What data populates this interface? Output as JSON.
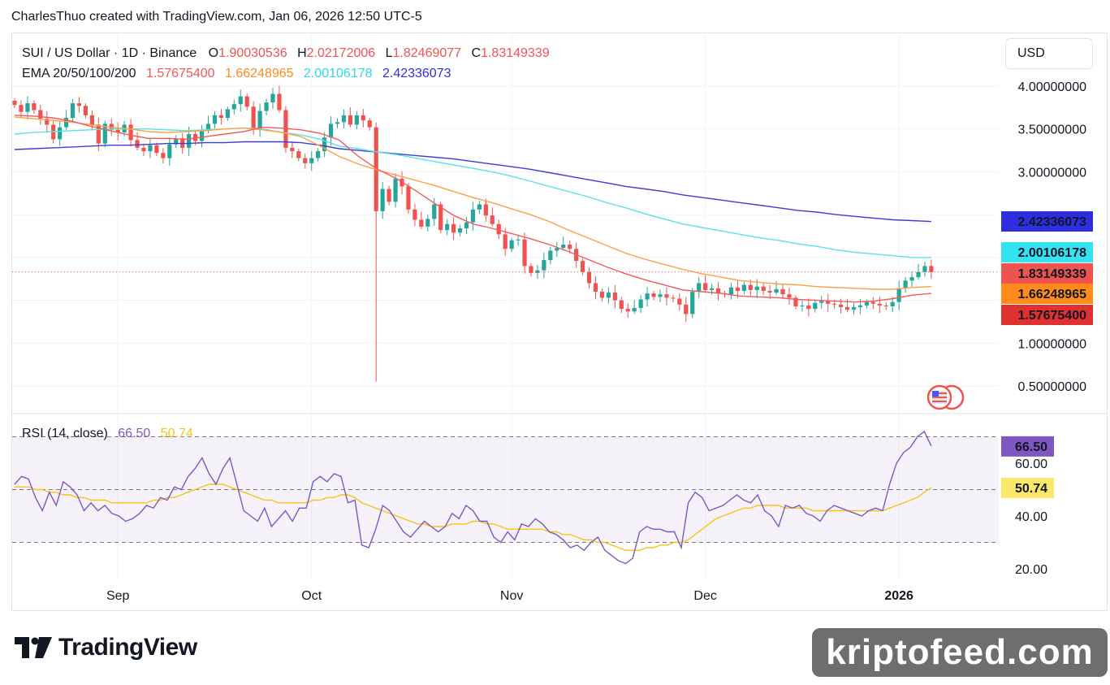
{
  "header": {
    "text": "CharlesThuo created with TradingView.com, Jan 06, 2026 12:50 UTC-5"
  },
  "currency_button": {
    "label": "USD"
  },
  "branding": {
    "tv_logo_text": "TradingView",
    "watermark": "kriptofeed.com"
  },
  "colors": {
    "up": "#26a69a",
    "down": "#ef5350",
    "ema20": "#f05a5a",
    "ema50": "#ff9f40",
    "ema100": "#5ce1e6",
    "ema200": "#3d3dd6",
    "rsi": "#7e57c2",
    "rsi_ma": "#f5c518"
  },
  "chart_data": [
    {
      "type": "candlestick",
      "legend": {
        "symbol": "SUI / US Dollar · 1D · Binance",
        "open_label": "O",
        "open": "1.90030536",
        "high_label": "H",
        "high": "2.02172006",
        "low_label": "L",
        "low": "1.82469077",
        "close_label": "C",
        "close": "1.83149339",
        "ema_label": "EMA 20/50/100/200",
        "ema_values": [
          "1.57675400",
          "1.66248965",
          "2.00106178",
          "2.42336073"
        ]
      },
      "price_ticks": [
        "4.00000000",
        "3.50000000",
        "3.00000000",
        "1.00000000",
        "0.50000000"
      ],
      "price_tick_values": [
        4.0,
        3.5,
        3.0,
        1.0,
        0.5
      ],
      "price_badges": [
        {
          "label": "2.42336073",
          "value": 2.42336073,
          "color": "#2e2ee0"
        },
        {
          "label": "2.00106178",
          "value": 2.00106178,
          "color": "#33e3f2"
        },
        {
          "label": "1.83149339",
          "value": 1.83149339,
          "color": "#ef5350"
        },
        {
          "label": "1.66248965",
          "value": 1.66248965,
          "color": "#ff8c1a"
        },
        {
          "label": "1.57675400",
          "value": 1.576754,
          "color": "#e03030"
        }
      ],
      "ylim": [
        0.3,
        4.6
      ],
      "time_labels": [
        "Sep",
        "Oct",
        "Nov",
        "Dec",
        "2026"
      ],
      "time_label_index": [
        16,
        46,
        77,
        107,
        137
      ],
      "candles_close": [
        3.78,
        3.7,
        3.8,
        3.72,
        3.62,
        3.55,
        3.38,
        3.52,
        3.63,
        3.8,
        3.77,
        3.66,
        3.55,
        3.33,
        3.56,
        3.49,
        3.46,
        3.55,
        3.37,
        3.28,
        3.24,
        3.31,
        3.22,
        3.16,
        3.32,
        3.39,
        3.28,
        3.44,
        3.36,
        3.48,
        3.56,
        3.66,
        3.63,
        3.73,
        3.79,
        3.88,
        3.76,
        3.5,
        3.71,
        3.81,
        3.91,
        3.72,
        3.28,
        3.24,
        3.16,
        3.1,
        3.16,
        3.24,
        3.4,
        3.56,
        3.58,
        3.66,
        3.55,
        3.66,
        3.6,
        3.52,
        2.54,
        2.8,
        2.65,
        2.92,
        2.83,
        2.56,
        2.44,
        2.36,
        2.45,
        2.62,
        2.32,
        2.39,
        2.29,
        2.34,
        2.41,
        2.56,
        2.62,
        2.49,
        2.39,
        2.27,
        2.1,
        2.2,
        2.21,
        1.9,
        1.82,
        1.85,
        1.97,
        2.08,
        2.11,
        2.15,
        2.1,
        1.96,
        1.83,
        1.7,
        1.6,
        1.53,
        1.59,
        1.5,
        1.4,
        1.37,
        1.41,
        1.51,
        1.58,
        1.54,
        1.57,
        1.53,
        1.52,
        1.45,
        1.34,
        1.6,
        1.7,
        1.62,
        1.64,
        1.58,
        1.57,
        1.65,
        1.61,
        1.68,
        1.62,
        1.66,
        1.61,
        1.59,
        1.63,
        1.57,
        1.53,
        1.43,
        1.44,
        1.4,
        1.47,
        1.49,
        1.46,
        1.45,
        1.42,
        1.39,
        1.42,
        1.44,
        1.48,
        1.46,
        1.44,
        1.43,
        1.48,
        1.64,
        1.73,
        1.77,
        1.83,
        1.9,
        1.83
      ],
      "ema_series": {
        "ema20": [
          3.66,
          3.65,
          3.63,
          3.59,
          3.53,
          3.48,
          3.43,
          3.39,
          3.39,
          3.38,
          3.41,
          3.44,
          3.47,
          3.52,
          3.51,
          3.49,
          3.45,
          3.37,
          3.18,
          3.03,
          2.92,
          2.78,
          2.63,
          2.49,
          2.39,
          2.34,
          2.28,
          2.22,
          2.15,
          2.07,
          1.98,
          1.89,
          1.81,
          1.74,
          1.68,
          1.62,
          1.6,
          1.58,
          1.55,
          1.54,
          1.53,
          1.51,
          1.5,
          1.49,
          1.48,
          1.49,
          1.52,
          1.56,
          1.58
        ],
        "ema50": [
          3.64,
          3.62,
          3.6,
          3.58,
          3.55,
          3.52,
          3.5,
          3.47,
          3.46,
          3.47,
          3.48,
          3.5,
          3.51,
          3.49,
          3.46,
          3.41,
          3.3,
          3.18,
          3.09,
          3.02,
          2.96,
          2.9,
          2.84,
          2.77,
          2.7,
          2.64,
          2.57,
          2.5,
          2.42,
          2.32,
          2.23,
          2.14,
          2.05,
          1.98,
          1.92,
          1.86,
          1.81,
          1.77,
          1.73,
          1.71,
          1.69,
          1.68,
          1.66,
          1.65,
          1.64,
          1.63,
          1.63,
          1.65,
          1.66
        ],
        "ema100": [
          3.44,
          3.46,
          3.47,
          3.48,
          3.49,
          3.5,
          3.5,
          3.5,
          3.49,
          3.48,
          3.49,
          3.5,
          3.51,
          3.5,
          3.46,
          3.43,
          3.38,
          3.3,
          3.27,
          3.23,
          3.2,
          3.16,
          3.12,
          3.08,
          3.04,
          3.0,
          2.95,
          2.89,
          2.83,
          2.77,
          2.71,
          2.64,
          2.58,
          2.51,
          2.45,
          2.39,
          2.35,
          2.31,
          2.27,
          2.23,
          2.2,
          2.16,
          2.13,
          2.09,
          2.06,
          2.04,
          2.02,
          2.0,
          2.0
        ],
        "ema200": [
          3.26,
          3.27,
          3.28,
          3.29,
          3.3,
          3.31,
          3.31,
          3.32,
          3.33,
          3.33,
          3.34,
          3.34,
          3.35,
          3.35,
          3.35,
          3.34,
          3.31,
          3.27,
          3.25,
          3.23,
          3.21,
          3.19,
          3.17,
          3.15,
          3.12,
          3.09,
          3.06,
          3.03,
          2.99,
          2.95,
          2.91,
          2.87,
          2.83,
          2.8,
          2.77,
          2.73,
          2.7,
          2.67,
          2.64,
          2.61,
          2.58,
          2.55,
          2.53,
          2.5,
          2.48,
          2.46,
          2.44,
          2.43,
          2.42
        ]
      },
      "wick_low_min": 0.55
    },
    {
      "type": "line",
      "legend": {
        "label": "RSI (14, close)",
        "rsi": "66.50",
        "rsi_ma": "50.74"
      },
      "ticks": [
        "60.00",
        "40.00",
        "20.00"
      ],
      "tick_values": [
        60,
        40,
        20
      ],
      "band": [
        30,
        70
      ],
      "midline": 50,
      "ylim": [
        15,
        80
      ],
      "badges": [
        {
          "label": "66.50",
          "value": 66.5,
          "color": "#7e57c2",
          "text_color": "#ffffff"
        },
        {
          "label": "50.74",
          "value": 50.74,
          "color": "#fce76a",
          "text_color": "#131722"
        }
      ],
      "rsi": [
        52,
        55,
        54,
        47,
        42,
        49,
        44,
        53,
        51,
        48,
        42,
        45,
        42,
        44,
        41,
        40,
        38,
        39,
        41,
        44,
        43,
        47,
        46,
        51,
        50,
        55,
        58,
        62,
        56,
        52,
        58,
        62,
        52,
        42,
        40,
        38,
        43,
        36,
        39,
        42,
        38,
        43,
        43,
        53,
        55,
        53,
        56,
        55,
        45,
        46,
        29,
        28,
        35,
        44,
        42,
        38,
        34,
        32,
        35,
        38,
        36,
        34,
        36,
        41,
        39,
        44,
        42,
        38,
        38,
        32,
        30,
        34,
        31,
        37,
        36,
        39,
        37,
        34,
        33,
        31,
        28,
        29,
        27,
        30,
        32,
        27,
        25,
        23,
        22,
        24,
        34,
        36,
        35,
        35,
        34,
        34,
        28,
        45,
        49,
        47,
        42,
        43,
        44,
        46,
        48,
        46,
        45,
        48,
        42,
        40,
        36,
        44,
        43,
        44,
        41,
        40,
        38,
        42,
        44,
        43,
        42,
        41,
        40,
        42,
        43,
        42,
        52,
        60,
        64,
        66,
        70,
        72,
        66.5
      ],
      "rsi_ma": [
        51,
        51,
        51,
        50,
        50,
        49,
        49,
        48,
        48,
        47,
        47,
        46,
        46,
        46,
        45,
        45,
        45,
        45,
        45,
        45,
        46,
        46,
        47,
        47,
        48,
        49,
        50,
        51,
        52,
        52,
        52,
        51,
        50,
        49,
        48,
        47,
        46,
        46,
        45,
        45,
        45,
        45,
        45,
        46,
        46,
        47,
        47,
        48,
        48,
        47,
        45,
        44,
        43,
        42,
        41,
        40,
        39,
        38,
        37,
        37,
        36,
        36,
        36,
        37,
        37,
        37,
        38,
        38,
        37,
        37,
        36,
        35,
        35,
        35,
        35,
        35,
        35,
        34,
        34,
        33,
        33,
        32,
        31,
        31,
        30,
        30,
        29,
        28,
        27,
        27,
        27,
        28,
        28,
        29,
        29,
        30,
        30,
        31,
        33,
        35,
        37,
        39,
        40,
        41,
        42,
        43,
        43,
        44,
        44,
        44,
        44,
        43,
        43,
        43,
        43,
        42,
        42,
        42,
        42,
        42,
        42,
        42,
        42,
        42,
        42,
        42,
        43,
        44,
        45,
        46,
        47,
        49,
        50.74
      ]
    }
  ]
}
